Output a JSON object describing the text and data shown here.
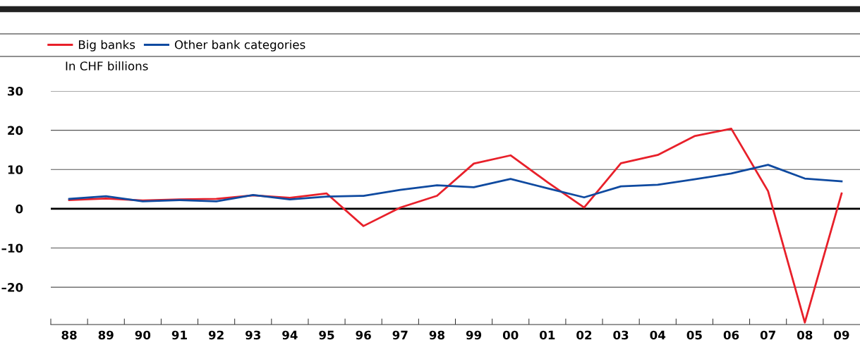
{
  "chart_data": {
    "type": "line",
    "ylabel": "In CHF billions",
    "categories": [
      "88",
      "89",
      "90",
      "91",
      "92",
      "93",
      "94",
      "95",
      "96",
      "97",
      "98",
      "99",
      "00",
      "01",
      "02",
      "03",
      "04",
      "05",
      "06",
      "07",
      "08",
      "09"
    ],
    "series": [
      {
        "name": "Big banks",
        "color": "#e8202a",
        "values": [
          2.2,
          2.6,
          2.1,
          2.4,
          2.5,
          3.4,
          2.8,
          3.9,
          -4.4,
          0.3,
          3.3,
          11.5,
          13.6,
          6.8,
          0.3,
          11.6,
          13.7,
          18.5,
          20.4,
          4.5,
          -29,
          3.9
        ]
      },
      {
        "name": "Other bank categories",
        "color": "#0f4aa0",
        "values": [
          2.5,
          3.2,
          1.9,
          2.2,
          1.9,
          3.5,
          2.4,
          3.1,
          3.3,
          4.8,
          6.0,
          5.5,
          7.6,
          5.2,
          2.9,
          5.7,
          6.1,
          7.5,
          9.0,
          11.2,
          7.7,
          7.0
        ]
      }
    ],
    "ylim": [
      -29.5,
      30
    ],
    "yticks": [
      {
        "value": -20,
        "label": "–20"
      },
      {
        "value": -10,
        "label": "–10"
      },
      0,
      10,
      20,
      30
    ],
    "ref_lines": [
      {
        "axis": "y",
        "value": 0,
        "color": "#000000"
      }
    ],
    "grid": "y",
    "legend": "top left",
    "marker": "none",
    "line_style": "solid"
  }
}
